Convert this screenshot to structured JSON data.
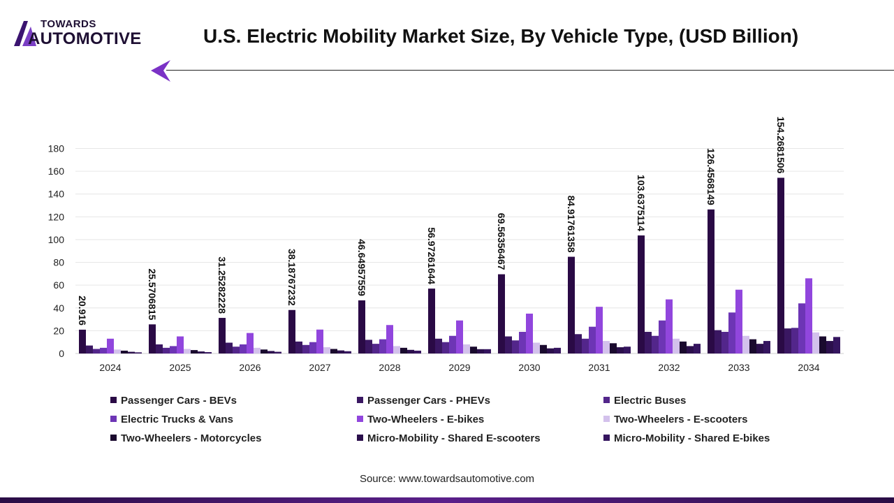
{
  "brand": {
    "top": "TOWARDS",
    "bottom": "AUTOMOTIVE"
  },
  "chart_data": {
    "type": "bar",
    "title": "U.S. Electric Mobility Market Size, By Vehicle Type, (USD Billion)",
    "xlabel": "",
    "ylabel": "",
    "ylim": [
      0,
      180
    ],
    "yticks": [
      "0",
      "20",
      "40",
      "60",
      "80",
      "100",
      "120",
      "140",
      "160",
      "180"
    ],
    "categories": [
      "2024",
      "2025",
      "2026",
      "2027",
      "2028",
      "2029",
      "2030",
      "2031",
      "2032",
      "2033",
      "2034"
    ],
    "grid": true,
    "legend_position": "bottom",
    "series": [
      {
        "name": "Passenger Cars - BEVs",
        "color": "#2a0a45",
        "values": [
          20.916,
          25.5706815,
          31.25282228,
          38.18767232,
          46.64957559,
          56.97261644,
          69.56356467,
          84.91761358,
          103.6375114,
          126.4568149,
          154.2681506
        ],
        "labels": [
          "20.916",
          "25.5706815",
          "31.25282228",
          "38.18767232",
          "46.64957559",
          "56.97261644",
          "69.56356467",
          "84.91761358",
          "103.6375114",
          "126.4568149",
          "154.2681506"
        ]
      },
      {
        "name": "Passenger Cars - PHEVs",
        "color": "#3a1762",
        "values": [
          7,
          8,
          9.5,
          10.5,
          12,
          13,
          15,
          17,
          19,
          20.5,
          22
        ]
      },
      {
        "name": "Electric Buses",
        "color": "#53268b",
        "values": [
          4,
          5,
          6,
          7.5,
          8.5,
          10,
          11.5,
          13,
          15.5,
          19,
          22.5
        ]
      },
      {
        "name": "Electric Trucks & Vans",
        "color": "#6d35b5",
        "values": [
          5,
          6.5,
          8,
          10,
          12.5,
          15.5,
          19,
          23.5,
          29,
          36,
          44
        ]
      },
      {
        "name": "Two-Wheelers - E-bikes",
        "color": "#9146dd",
        "values": [
          13,
          15,
          18,
          21,
          25,
          29,
          35,
          41,
          47.5,
          56,
          66
        ]
      },
      {
        "name": "Two-Wheelers - E-scooters",
        "color": "#d3c1ec",
        "values": [
          3.5,
          4,
          5,
          5.5,
          6.5,
          8,
          9.5,
          11,
          13,
          15.5,
          18.5
        ]
      },
      {
        "name": "Two-Wheelers - Motorcycles",
        "color": "#1a0a2e",
        "values": [
          2.5,
          3,
          3.5,
          4,
          5,
          6,
          7.5,
          9,
          10.5,
          12.5,
          15
        ]
      },
      {
        "name": "Micro-Mobility - Shared E-scooters",
        "color": "#2b0f4c",
        "values": [
          1.5,
          1.8,
          2.2,
          2.7,
          3.2,
          3.8,
          4.5,
          5.5,
          6.5,
          8.5,
          11
        ]
      },
      {
        "name": "Micro-Mobility - Shared E-bikes",
        "color": "#35155f",
        "values": [
          1,
          1.2,
          1.5,
          2,
          2.5,
          3.8,
          5,
          6,
          8.5,
          11,
          14.5
        ]
      }
    ]
  },
  "footer": {
    "source": "Source: www.towardsautomotive.com"
  }
}
